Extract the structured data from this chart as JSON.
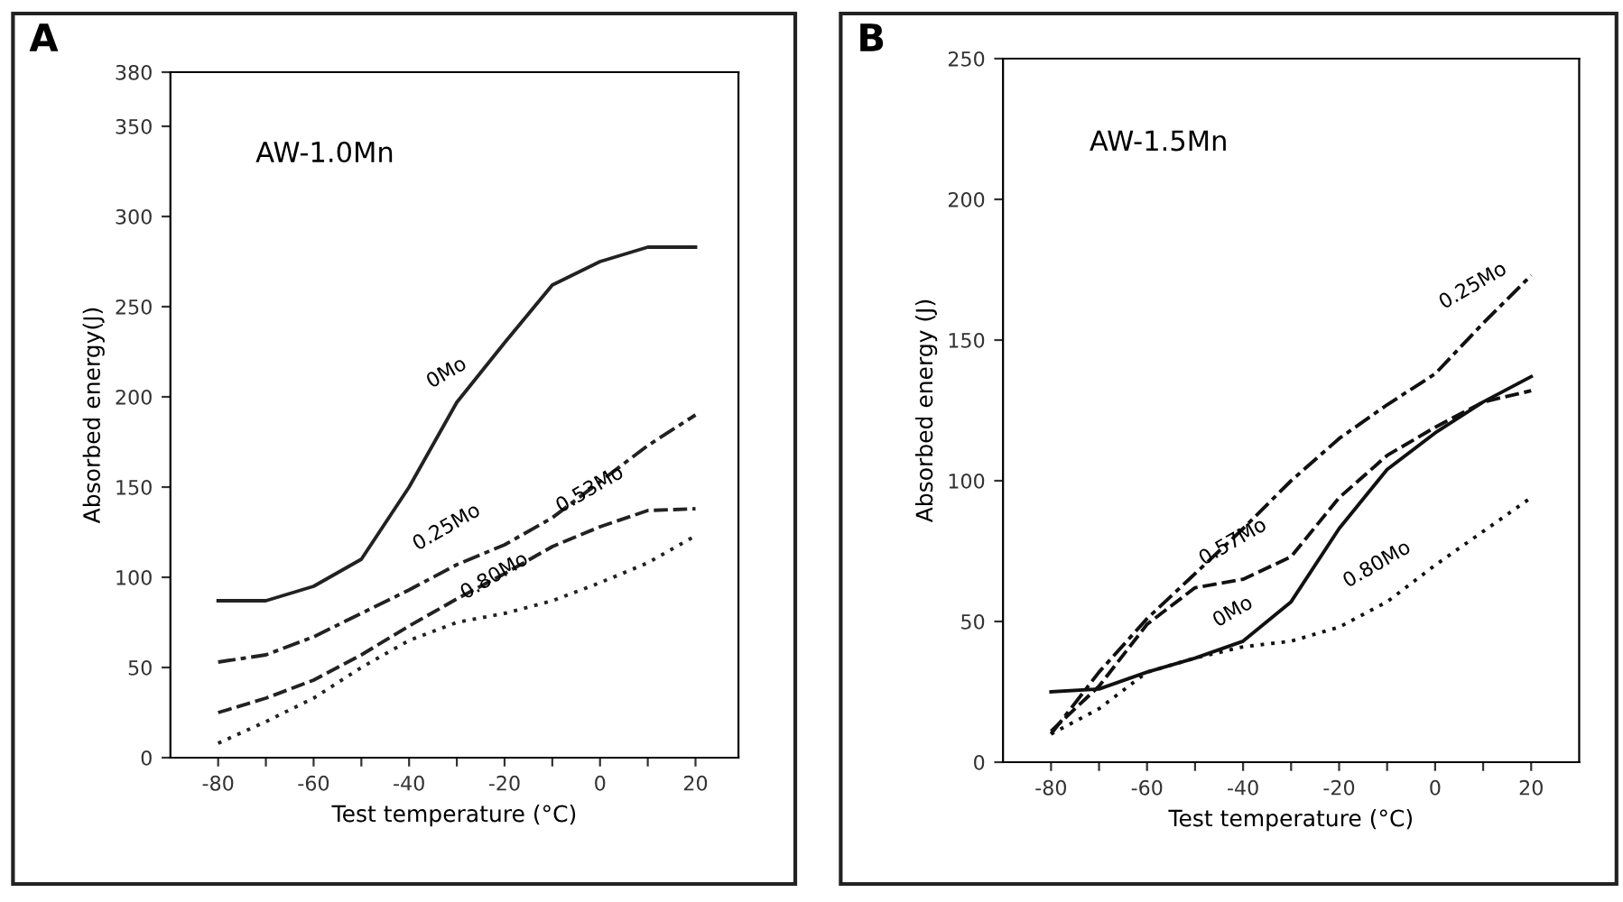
{
  "chart_data": [
    {
      "type": "line",
      "xlabel": "Test temperature (°C)",
      "ylabel": "Absorbed energy(J)",
      "x": [
        -80,
        -70,
        -60,
        -50,
        -40,
        -30,
        -20,
        -10,
        0,
        10,
        20
      ],
      "series": [
        {
          "color": "#222222",
          "line_style": "solid",
          "values": [
            87,
            87,
            95,
            110,
            150,
            197,
            230,
            262,
            275,
            283,
            283
          ]
        },
        {
          "color": "#222222",
          "line_style": "dashdot",
          "values": [
            53,
            57,
            67,
            80,
            93,
            107,
            118,
            133,
            153,
            173,
            190
          ]
        },
        {
          "color": "#222222",
          "line_style": "dashed",
          "values": [
            25,
            33,
            43,
            57,
            73,
            88,
            102,
            117,
            128,
            137,
            138
          ]
        },
        {
          "color": "#222222",
          "line_style": "dotted",
          "values": [
            8,
            20,
            33,
            50,
            65,
            75,
            80,
            87,
            97,
            108,
            123
          ]
        }
      ],
      "xlim": [
        -90,
        29
      ],
      "ylim": [
        0,
        380
      ],
      "xticks": [
        -80,
        {
          "value": -70,
          "label": null
        },
        -60,
        {
          "value": -50,
          "label": null
        },
        -40,
        {
          "value": -30,
          "label": null
        },
        -20,
        {
          "value": -10,
          "label": null
        },
        0,
        {
          "value": 10,
          "label": null
        },
        20
      ],
      "yticks": [
        0,
        50,
        100,
        150,
        200,
        250,
        300,
        350,
        380
      ],
      "annotations": [
        "A",
        "AW-1.0Mn",
        {
          "text": "0Mo",
          "x": -30,
          "y": 197
        },
        {
          "text": "0.25Mo",
          "x": -30,
          "y": 107
        },
        {
          "text": "0.53Mo",
          "x": 0,
          "y": 128
        },
        {
          "text": "0.80Mo",
          "x": -20,
          "y": 80
        }
      ],
      "grid": false
    },
    {
      "type": "line",
      "xlabel": "Test temperature (°C)",
      "ylabel": "Absorbed energy (J)",
      "x": [
        -80,
        -70,
        -60,
        -50,
        -40,
        -30,
        -20,
        -10,
        0,
        10,
        20
      ],
      "series": [
        {
          "color": "#111111",
          "line_style": "solid",
          "values": [
            25,
            26,
            32,
            37,
            43,
            57,
            83,
            104,
            117,
            128,
            137
          ]
        },
        {
          "color": "#111111",
          "line_style": "dashdot",
          "values": [
            10,
            32,
            51,
            67,
            83,
            100,
            115,
            127,
            138,
            156,
            173
          ]
        },
        {
          "color": "#111111",
          "line_style": "dashed",
          "values": [
            11,
            27,
            49,
            62,
            65,
            73,
            94,
            109,
            119,
            128,
            132
          ]
        },
        {
          "color": "#111111",
          "line_style": "dotted",
          "values": [
            10,
            19,
            32,
            37,
            41,
            43,
            48,
            57,
            70,
            82,
            94
          ]
        }
      ],
      "xlim": [
        -90,
        30
      ],
      "ylim": [
        0,
        250
      ],
      "xticks": [
        -80,
        {
          "value": -70,
          "label": null
        },
        -60,
        {
          "value": -50,
          "label": null
        },
        -40,
        {
          "value": -30,
          "label": null
        },
        -20,
        {
          "value": -10,
          "label": null
        },
        0,
        {
          "value": 10,
          "label": null
        },
        20
      ],
      "yticks": [
        0,
        50,
        100,
        150,
        200,
        250
      ],
      "annotations": [
        "B",
        "AW-1.5Mn",
        {
          "text": "0Mo",
          "x": -40,
          "y": 43
        },
        {
          "text": "0.25Mo",
          "x": 10,
          "y": 156
        },
        {
          "text": "0.57Mo",
          "x": -40,
          "y": 65
        },
        {
          "text": "0.80Mo",
          "x": -10,
          "y": 57
        }
      ],
      "grid": false
    }
  ]
}
